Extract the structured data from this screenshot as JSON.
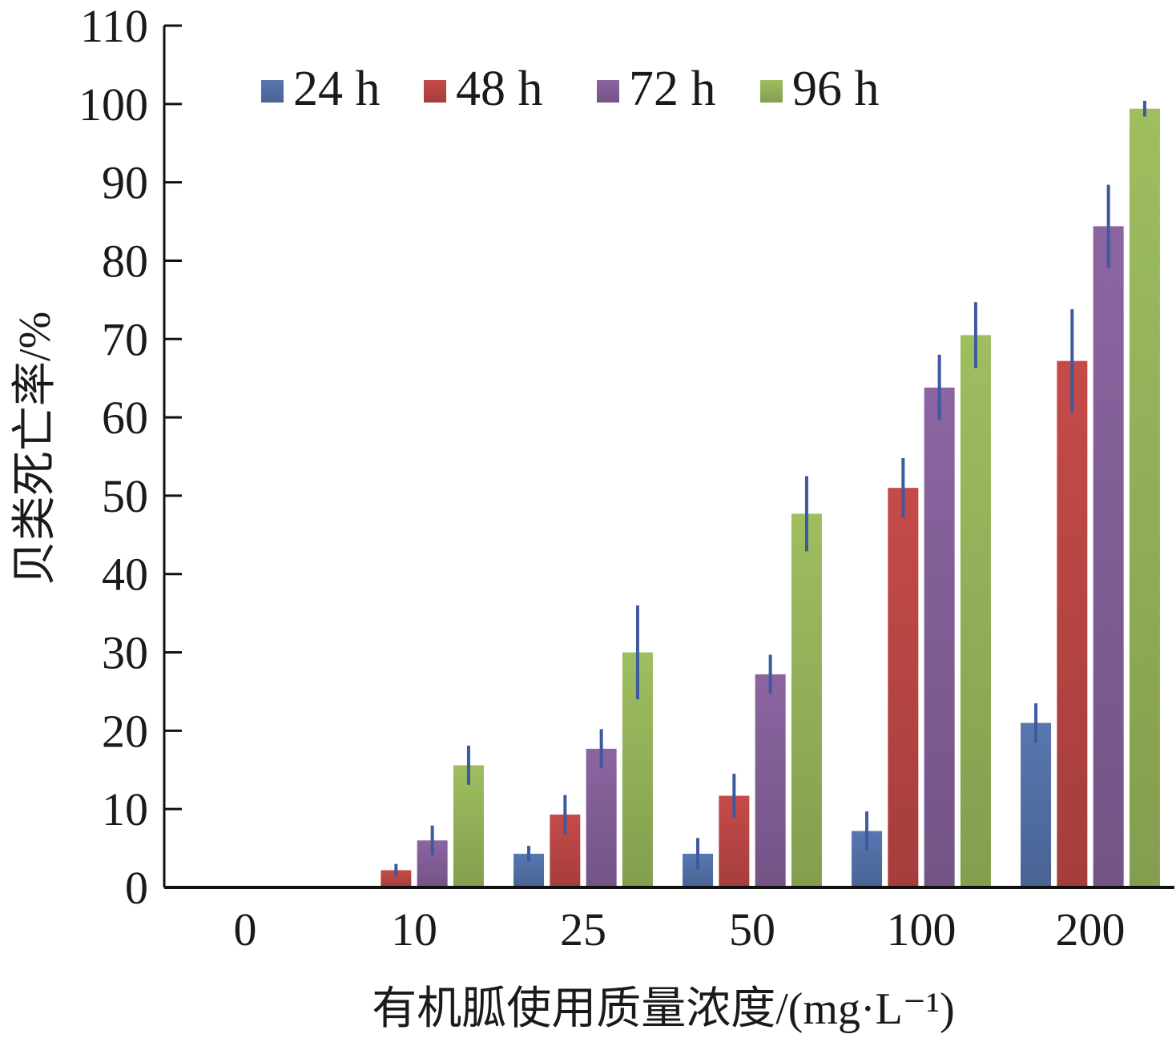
{
  "chart_data": {
    "type": "bar",
    "xlabel": "有机胍使用质量浓度/(mg·L⁻¹)",
    "ylabel": "贝类死亡率/%",
    "ylim": [
      0,
      110
    ],
    "yticks": [
      0,
      10,
      20,
      30,
      40,
      50,
      60,
      70,
      80,
      90,
      100,
      110
    ],
    "categories": [
      "0",
      "10",
      "25",
      "50",
      "100",
      "200"
    ],
    "legend_position": "top",
    "error_bar_color": "#3d5a9e",
    "series": [
      {
        "name": "24 h",
        "color": "#4f6a9e",
        "values": [
          0,
          0,
          4.3,
          4.3,
          7.2,
          21.0
        ],
        "errors": [
          0,
          0,
          1.0,
          2.0,
          2.5,
          2.5
        ]
      },
      {
        "name": "48 h",
        "color": "#b04341",
        "values": [
          0,
          2.2,
          9.3,
          11.7,
          51.0,
          67.2
        ],
        "errors": [
          0,
          0.8,
          2.5,
          2.8,
          3.8,
          6.6
        ]
      },
      {
        "name": "72 h",
        "color": "#7c5a90",
        "values": [
          0,
          6.0,
          17.7,
          27.2,
          63.8,
          84.4
        ],
        "errors": [
          0,
          1.9,
          2.5,
          2.5,
          4.2,
          5.3
        ]
      },
      {
        "name": "96 h",
        "color": "#8daa55",
        "values": [
          0,
          15.6,
          30.0,
          47.7,
          70.5,
          99.4
        ],
        "errors": [
          0,
          2.5,
          6.0,
          4.8,
          4.2,
          1.0
        ]
      }
    ]
  }
}
